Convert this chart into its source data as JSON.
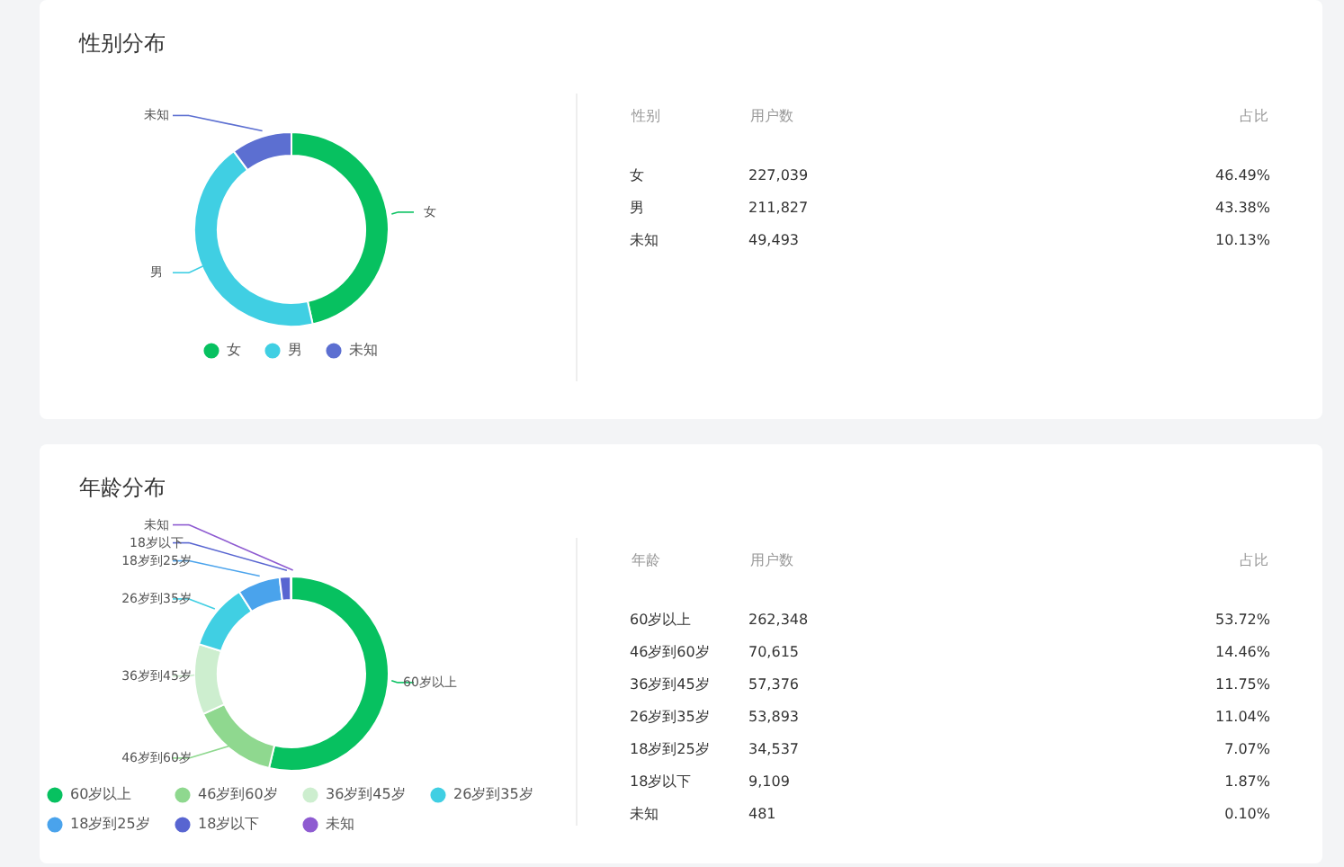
{
  "chart_data": [
    {
      "type": "donut",
      "title": "性别分布",
      "categories": [
        "女",
        "男",
        "未知"
      ],
      "values": [
        46.49,
        43.38,
        10.13
      ],
      "colors": [
        "#07c160",
        "#40cfe3",
        "#5c6fd1"
      ],
      "annotations": [
        "性别",
        "用户数",
        "占比",
        "227,039",
        "46.49%",
        "211,827",
        "43.38%",
        "49,493",
        "10.13%"
      ],
      "legend": "bottom"
    },
    {
      "type": "donut",
      "title": "年龄分布",
      "categories": [
        "60岁以上",
        "46岁到60岁",
        "36岁到45岁",
        "26岁到35岁",
        "18岁到25岁",
        "18岁以下",
        "未知"
      ],
      "values": [
        53.72,
        14.46,
        11.75,
        11.04,
        7.07,
        1.87,
        0.1
      ],
      "colors": [
        "#07c160",
        "#8fd88f",
        "#cdeecf",
        "#40cfe3",
        "#4aa3ec",
        "#5865d1",
        "#8e5bd1"
      ],
      "annotations": [
        "年龄",
        "用户数",
        "占比",
        "262,348",
        "53.72%",
        "70,615",
        "14.46%",
        "57,376",
        "11.75%",
        "53,893",
        "11.04%",
        "34,537",
        "7.07%",
        "9,109",
        "1.87%",
        "481",
        "0.10%"
      ],
      "legend": "bottom"
    }
  ]
}
